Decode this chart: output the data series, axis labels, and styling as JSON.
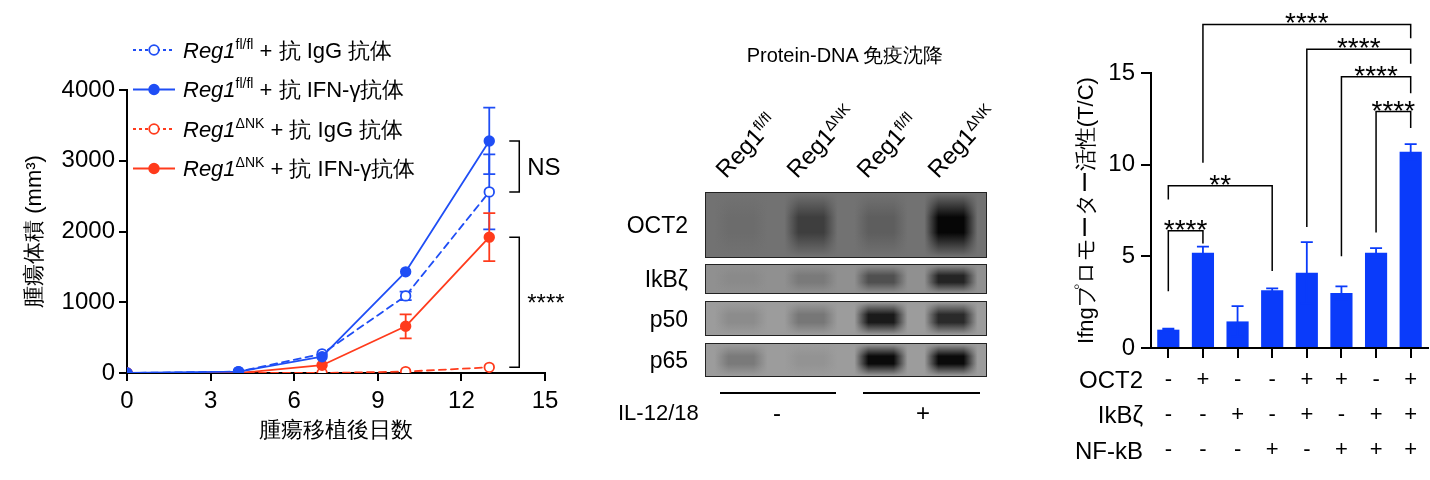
{
  "chart_data": [
    {
      "type": "line",
      "xlabel": "腫瘍移植後日数",
      "ylabel": "腫瘍体積 (mm³)",
      "x": [
        0,
        4,
        7,
        10,
        13
      ],
      "xlim": [
        0,
        15
      ],
      "xticks": [
        0,
        3,
        6,
        9,
        12,
        15
      ],
      "ylim": [
        0,
        4000
      ],
      "yticks": [
        0,
        1000,
        2000,
        3000,
        4000
      ],
      "legend": "top left",
      "marker": "circle",
      "series": [
        {
          "name": "Reg1$^{fl/fl}$ + 抗 IgG 抗体",
          "color": "#1f4ef5",
          "line_style": "dashed",
          "values": [
            0,
            20,
            270,
            1090,
            2560
          ],
          "errors": [
            null,
            null,
            null,
            60,
            530
          ]
        },
        {
          "name": "Reg1$^{fl/fl}$ + 抗 IFN-γ抗体",
          "color": "#1f4ef5",
          "line_style": "solid",
          "values": [
            0,
            20,
            230,
            1430,
            3280
          ],
          "errors": [
            null,
            null,
            null,
            null,
            470
          ]
        },
        {
          "name": "Reg1$^{ΔNK}$ + 抗 IgG 抗体",
          "color": "#ff3b1c",
          "line_style": "dashed",
          "values": [
            0,
            0,
            0,
            20,
            80
          ]
        },
        {
          "name": "Reg1$^{ΔNK}$ + 抗 IFN-γ抗体",
          "color": "#ff3b1c",
          "line_style": "solid",
          "values": [
            0,
            0,
            110,
            660,
            1920
          ],
          "errors": [
            null,
            null,
            null,
            170,
            340
          ]
        }
      ],
      "annotations": [
        "NS",
        "****"
      ]
    },
    {
      "type": "other",
      "title": "Protein-DNA 免疫沈降",
      "annotations": [
        "Reg1$^{fl/fl}$",
        "Reg1$^{ΔNK}$",
        "Reg1$^{fl/fl}$",
        "Reg1$^{ΔNK}$",
        "OCT2",
        "IkBζ",
        "p50",
        "p65",
        "IL-12/18",
        "-",
        "+"
      ]
    },
    {
      "type": "bar",
      "ylabel": "Ifngプロモーター活性(T/C)",
      "categories": [
        "-\n-\n-",
        "+\n-\n-",
        "-\n+\n-",
        "-\n-\n+",
        "+\n+\n-",
        "+\n-\n+",
        "-\n+\n+",
        "+\n+\n+"
      ],
      "values": [
        1.0,
        5.2,
        1.45,
        3.15,
        4.1,
        3.0,
        5.2,
        10.7
      ],
      "errors": [
        0.05,
        0.33,
        0.83,
        0.1,
        1.67,
        0.36,
        0.25,
        0.42
      ],
      "color": "#0a3bfa",
      "ylim": [
        0,
        15
      ],
      "yticks": [
        0,
        5,
        10,
        15
      ],
      "annotations": [
        "****",
        "**",
        "****",
        "****",
        "****",
        "****",
        "OCT2",
        "IkBζ",
        "NF-kB"
      ]
    }
  ]
}
